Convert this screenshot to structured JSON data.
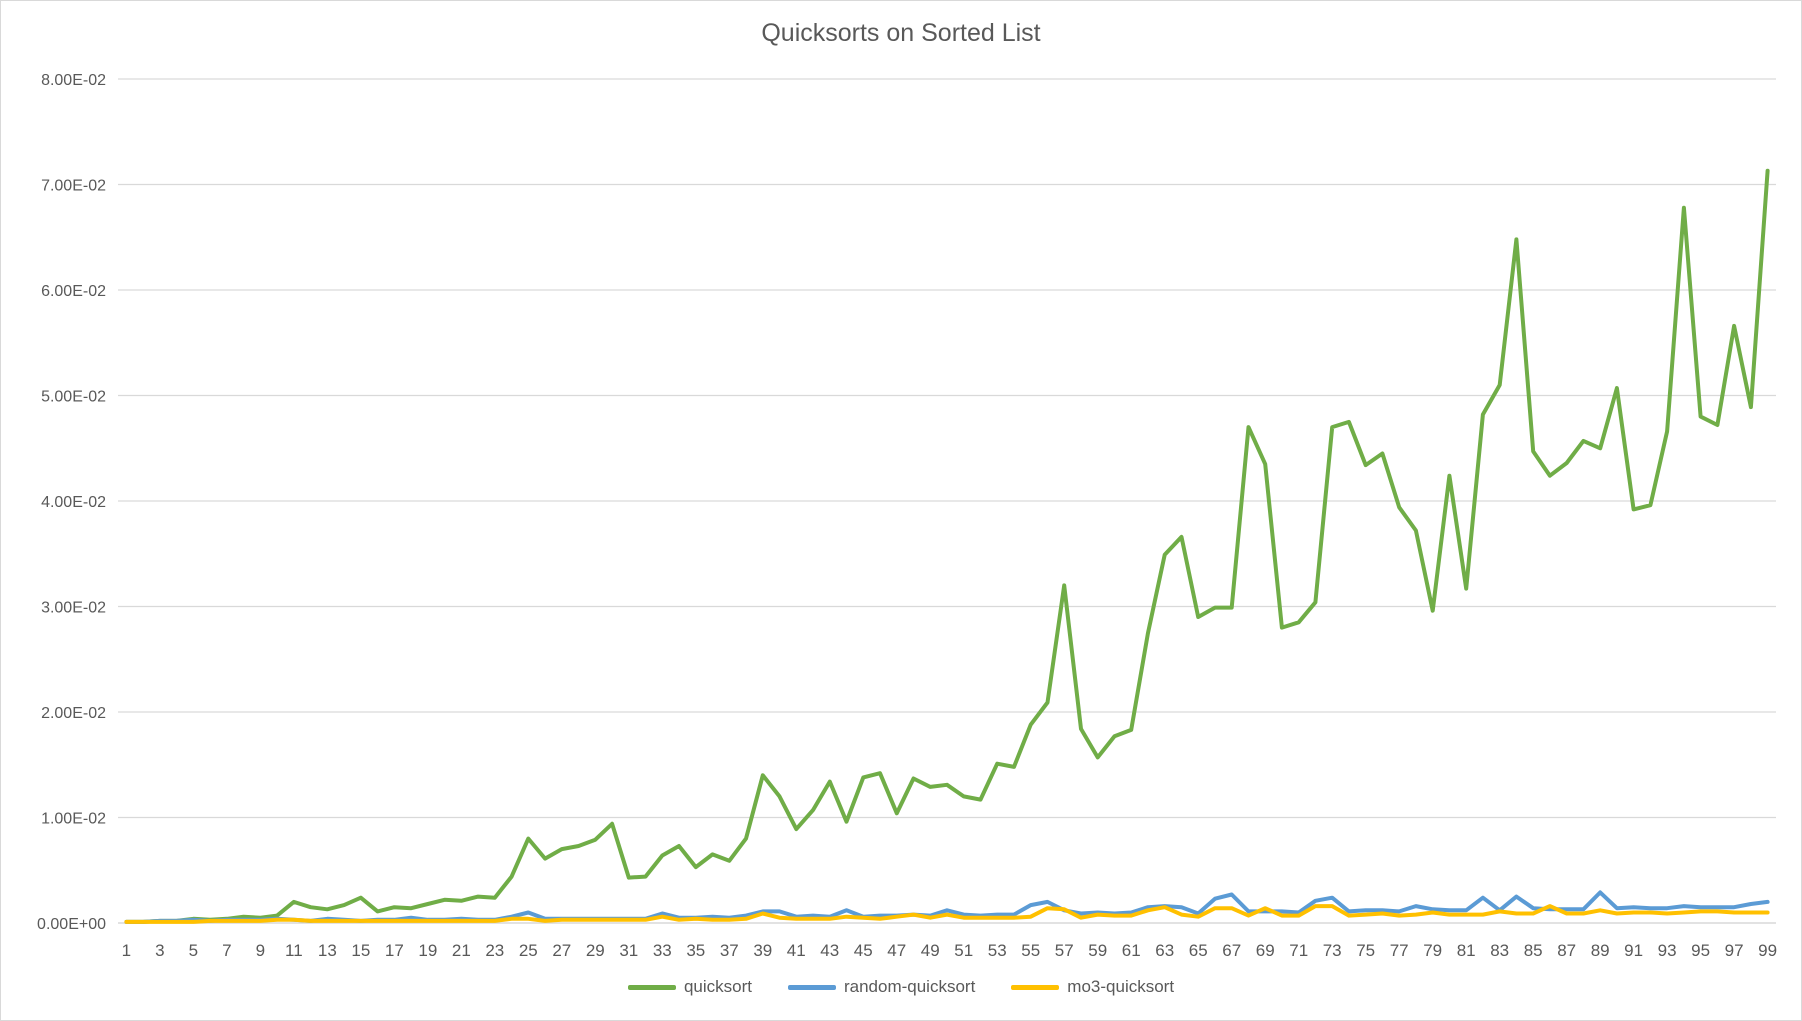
{
  "chart_data": {
    "type": "line",
    "title": "Quicksorts on Sorted List",
    "xlabel": "",
    "ylabel": "",
    "x": [
      1,
      2,
      3,
      4,
      5,
      6,
      7,
      8,
      9,
      10,
      11,
      12,
      13,
      14,
      15,
      16,
      17,
      18,
      19,
      20,
      21,
      22,
      23,
      24,
      25,
      26,
      27,
      28,
      29,
      30,
      31,
      32,
      33,
      34,
      35,
      36,
      37,
      38,
      39,
      40,
      41,
      42,
      43,
      44,
      45,
      46,
      47,
      48,
      49,
      50,
      51,
      52,
      53,
      54,
      55,
      56,
      57,
      58,
      59,
      60,
      61,
      62,
      63,
      64,
      65,
      66,
      67,
      68,
      69,
      70,
      71,
      72,
      73,
      74,
      75,
      76,
      77,
      78,
      79,
      80,
      81,
      82,
      83,
      84,
      85,
      86,
      87,
      88,
      89,
      90,
      91,
      92,
      93,
      94,
      95,
      96,
      97,
      98,
      99
    ],
    "x_tick_labels": [
      "1",
      "3",
      "5",
      "7",
      "9",
      "11",
      "13",
      "15",
      "17",
      "19",
      "21",
      "23",
      "25",
      "27",
      "29",
      "31",
      "33",
      "35",
      "37",
      "39",
      "41",
      "43",
      "45",
      "47",
      "49",
      "51",
      "53",
      "55",
      "57",
      "59",
      "61",
      "63",
      "65",
      "67",
      "69",
      "71",
      "73",
      "75",
      "77",
      "79",
      "81",
      "83",
      "85",
      "87",
      "89",
      "91",
      "93",
      "95",
      "97",
      "99"
    ],
    "ylim": [
      0,
      0.08
    ],
    "y_ticks": [
      0,
      0.01,
      0.02,
      0.03,
      0.04,
      0.05,
      0.06,
      0.07,
      0.08
    ],
    "y_tick_labels": [
      "0.00E+00",
      "1.00E-02",
      "2.00E-02",
      "3.00E-02",
      "4.00E-02",
      "5.00E-02",
      "6.00E-02",
      "7.00E-02",
      "8.00E-02"
    ],
    "grid": true,
    "legend_position": "bottom",
    "series": [
      {
        "name": "quicksort",
        "color": "#70ad47",
        "values": [
          0.0001,
          0.0001,
          0.0002,
          0.0002,
          0.0004,
          0.0003,
          0.0004,
          0.0006,
          0.0005,
          0.0007,
          0.002,
          0.0015,
          0.0013,
          0.0017,
          0.0024,
          0.0011,
          0.0015,
          0.0014,
          0.0018,
          0.0022,
          0.0021,
          0.0025,
          0.0024,
          0.0044,
          0.008,
          0.0061,
          0.007,
          0.0073,
          0.0079,
          0.0094,
          0.0043,
          0.0044,
          0.0064,
          0.0073,
          0.0053,
          0.0065,
          0.0059,
          0.008,
          0.014,
          0.012,
          0.0089,
          0.0107,
          0.0134,
          0.0096,
          0.0138,
          0.0142,
          0.0104,
          0.0137,
          0.0129,
          0.0131,
          0.012,
          0.0117,
          0.0151,
          0.0148,
          0.0188,
          0.0209,
          0.032,
          0.0184,
          0.0157,
          0.0177,
          0.0183,
          0.0275,
          0.0349,
          0.0366,
          0.029,
          0.0299,
          0.0299,
          0.047,
          0.0435,
          0.028,
          0.0285,
          0.0304,
          0.047,
          0.0475,
          0.0434,
          0.0445,
          0.0394,
          0.0372,
          0.0296,
          0.0424,
          0.0317,
          0.0482,
          0.051,
          0.0648,
          0.0447,
          0.0424,
          0.0436,
          0.0457,
          0.045,
          0.0507,
          0.0392,
          0.0396,
          0.0466,
          0.0678,
          0.048,
          0.0472,
          0.0566,
          0.0489,
          0.0713
        ]
      },
      {
        "name": "random-quicksort",
        "color": "#5b9bd5",
        "values": [
          0.0001,
          0.0001,
          0.0002,
          0.0002,
          0.0003,
          0.0002,
          0.0003,
          0.0003,
          0.0003,
          0.0004,
          0.0003,
          0.0002,
          0.0004,
          0.0003,
          0.0002,
          0.0003,
          0.0003,
          0.0005,
          0.0003,
          0.0003,
          0.0004,
          0.0003,
          0.0003,
          0.0006,
          0.001,
          0.0004,
          0.0004,
          0.0004,
          0.0004,
          0.0004,
          0.0004,
          0.0004,
          0.0009,
          0.0005,
          0.0005,
          0.0006,
          0.0005,
          0.0007,
          0.0011,
          0.0011,
          0.0006,
          0.0007,
          0.0006,
          0.0012,
          0.0006,
          0.0007,
          0.0007,
          0.0008,
          0.0007,
          0.0012,
          0.0008,
          0.0007,
          0.0008,
          0.0008,
          0.0017,
          0.002,
          0.0012,
          0.0009,
          0.001,
          0.0009,
          0.001,
          0.0015,
          0.0016,
          0.0015,
          0.0009,
          0.0023,
          0.0027,
          0.0011,
          0.0011,
          0.0011,
          0.001,
          0.0021,
          0.0024,
          0.0011,
          0.0012,
          0.0012,
          0.0011,
          0.0016,
          0.0013,
          0.0012,
          0.0012,
          0.0024,
          0.0012,
          0.0025,
          0.0014,
          0.0013,
          0.0013,
          0.0013,
          0.0029,
          0.0014,
          0.0015,
          0.0014,
          0.0014,
          0.0016,
          0.0015,
          0.0015,
          0.0015,
          0.0018,
          0.002
        ]
      },
      {
        "name": "mo3-quicksort",
        "color": "#ffc000",
        "values": [
          0.0001,
          0.0001,
          0.0001,
          0.0001,
          0.0001,
          0.0002,
          0.0002,
          0.0002,
          0.0002,
          0.0003,
          0.0003,
          0.0002,
          0.0002,
          0.0002,
          0.0002,
          0.0002,
          0.0002,
          0.0002,
          0.0002,
          0.0002,
          0.0002,
          0.0002,
          0.0002,
          0.0004,
          0.0004,
          0.0002,
          0.0003,
          0.0003,
          0.0003,
          0.0003,
          0.0003,
          0.0003,
          0.0006,
          0.0003,
          0.0004,
          0.0003,
          0.0003,
          0.0004,
          0.0009,
          0.0005,
          0.0004,
          0.0004,
          0.0004,
          0.0006,
          0.0005,
          0.0004,
          0.0006,
          0.0008,
          0.0005,
          0.0008,
          0.0005,
          0.0005,
          0.0005,
          0.0005,
          0.0006,
          0.0014,
          0.0013,
          0.0005,
          0.0008,
          0.0007,
          0.0007,
          0.0012,
          0.0015,
          0.0008,
          0.0006,
          0.0014,
          0.0014,
          0.0007,
          0.0014,
          0.0007,
          0.0007,
          0.0016,
          0.0016,
          0.0007,
          0.0008,
          0.0009,
          0.0007,
          0.0008,
          0.001,
          0.0008,
          0.0008,
          0.0008,
          0.0011,
          0.0009,
          0.0009,
          0.0016,
          0.0009,
          0.0009,
          0.0012,
          0.0009,
          0.001,
          0.001,
          0.0009,
          0.001,
          0.0011,
          0.0011,
          0.001,
          0.001,
          0.001
        ]
      }
    ]
  }
}
